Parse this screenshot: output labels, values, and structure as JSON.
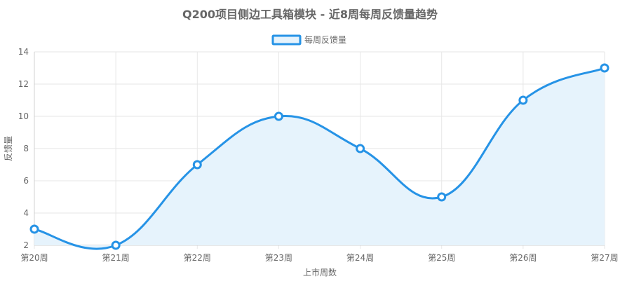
{
  "chart_data": {
    "type": "line",
    "title": "Q200项目侧边工具箱模块 - 近8周每周反馈量趋势",
    "xlabel": "上市周数",
    "ylabel": "反馈量",
    "categories": [
      "第20周",
      "第21周",
      "第22周",
      "第23周",
      "第24周",
      "第25周",
      "第26周",
      "第27周"
    ],
    "series": [
      {
        "name": "每周反馈量",
        "values": [
          3,
          2,
          7,
          10,
          8,
          5,
          11,
          13
        ]
      }
    ],
    "ylim": [
      2,
      14
    ],
    "yticks": [
      "2",
      "4",
      "6",
      "8",
      "10",
      "12",
      "14"
    ],
    "grid": true,
    "legend": "top-center",
    "colors": {
      "line": "#2693e6",
      "fill": "#e6f3fc"
    },
    "smooth": true,
    "filled": true
  }
}
